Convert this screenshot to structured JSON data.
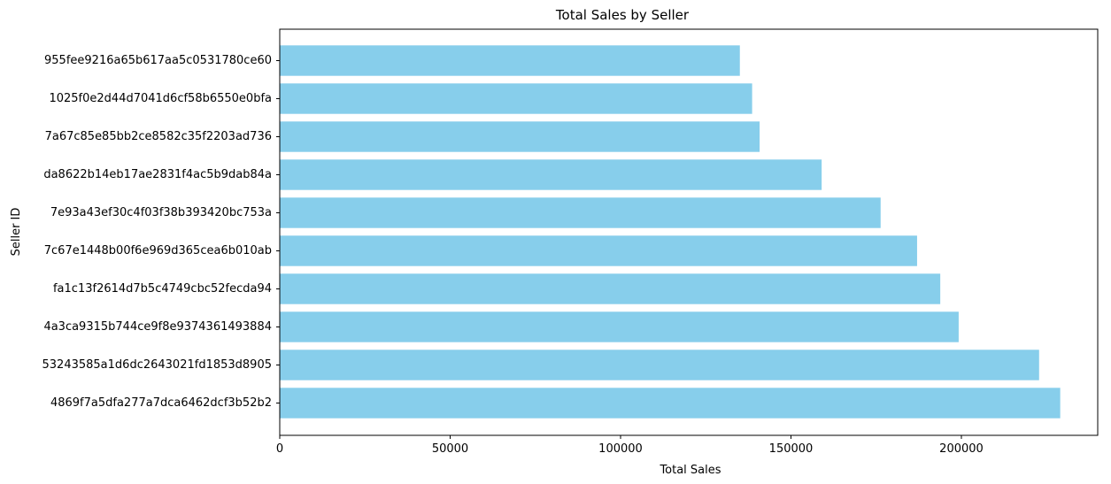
{
  "chart_data": {
    "type": "bar",
    "orientation": "horizontal",
    "title": "Total Sales by Seller",
    "xlabel": "Total Sales",
    "ylabel": "Seller ID",
    "bar_color": "#87ceeb",
    "categories": [
      "4869f7a5dfa277a7dca6462dcf3b52b2",
      "53243585a1d6dc2643021fd1853d8905",
      "4a3ca9315b744ce9f8e9374361493884",
      "fa1c13f2614d7b5c4749cbc52fecda94",
      "7c67e1448b00f6e969d365cea6b010ab",
      "7e93a43ef30c4f03f38b393420bc753a",
      "da8622b14eb17ae2831f4ac5b9dab84a",
      "7a67c85e85bb2ce8582c35f2203ad736",
      "1025f0e2d44d7041d6cf58b6550e0bfa",
      "955fee9216a65b617aa5c0531780ce60"
    ],
    "values": [
      229000,
      222800,
      199200,
      193800,
      187000,
      176300,
      159000,
      140800,
      138600,
      135000
    ],
    "xlim": [
      0,
      240000
    ],
    "xticks": [
      0,
      50000,
      100000,
      150000,
      200000
    ],
    "xtick_labels": [
      "0",
      "50000",
      "100000",
      "150000",
      "200000"
    ],
    "grid": false,
    "legend": "none"
  }
}
